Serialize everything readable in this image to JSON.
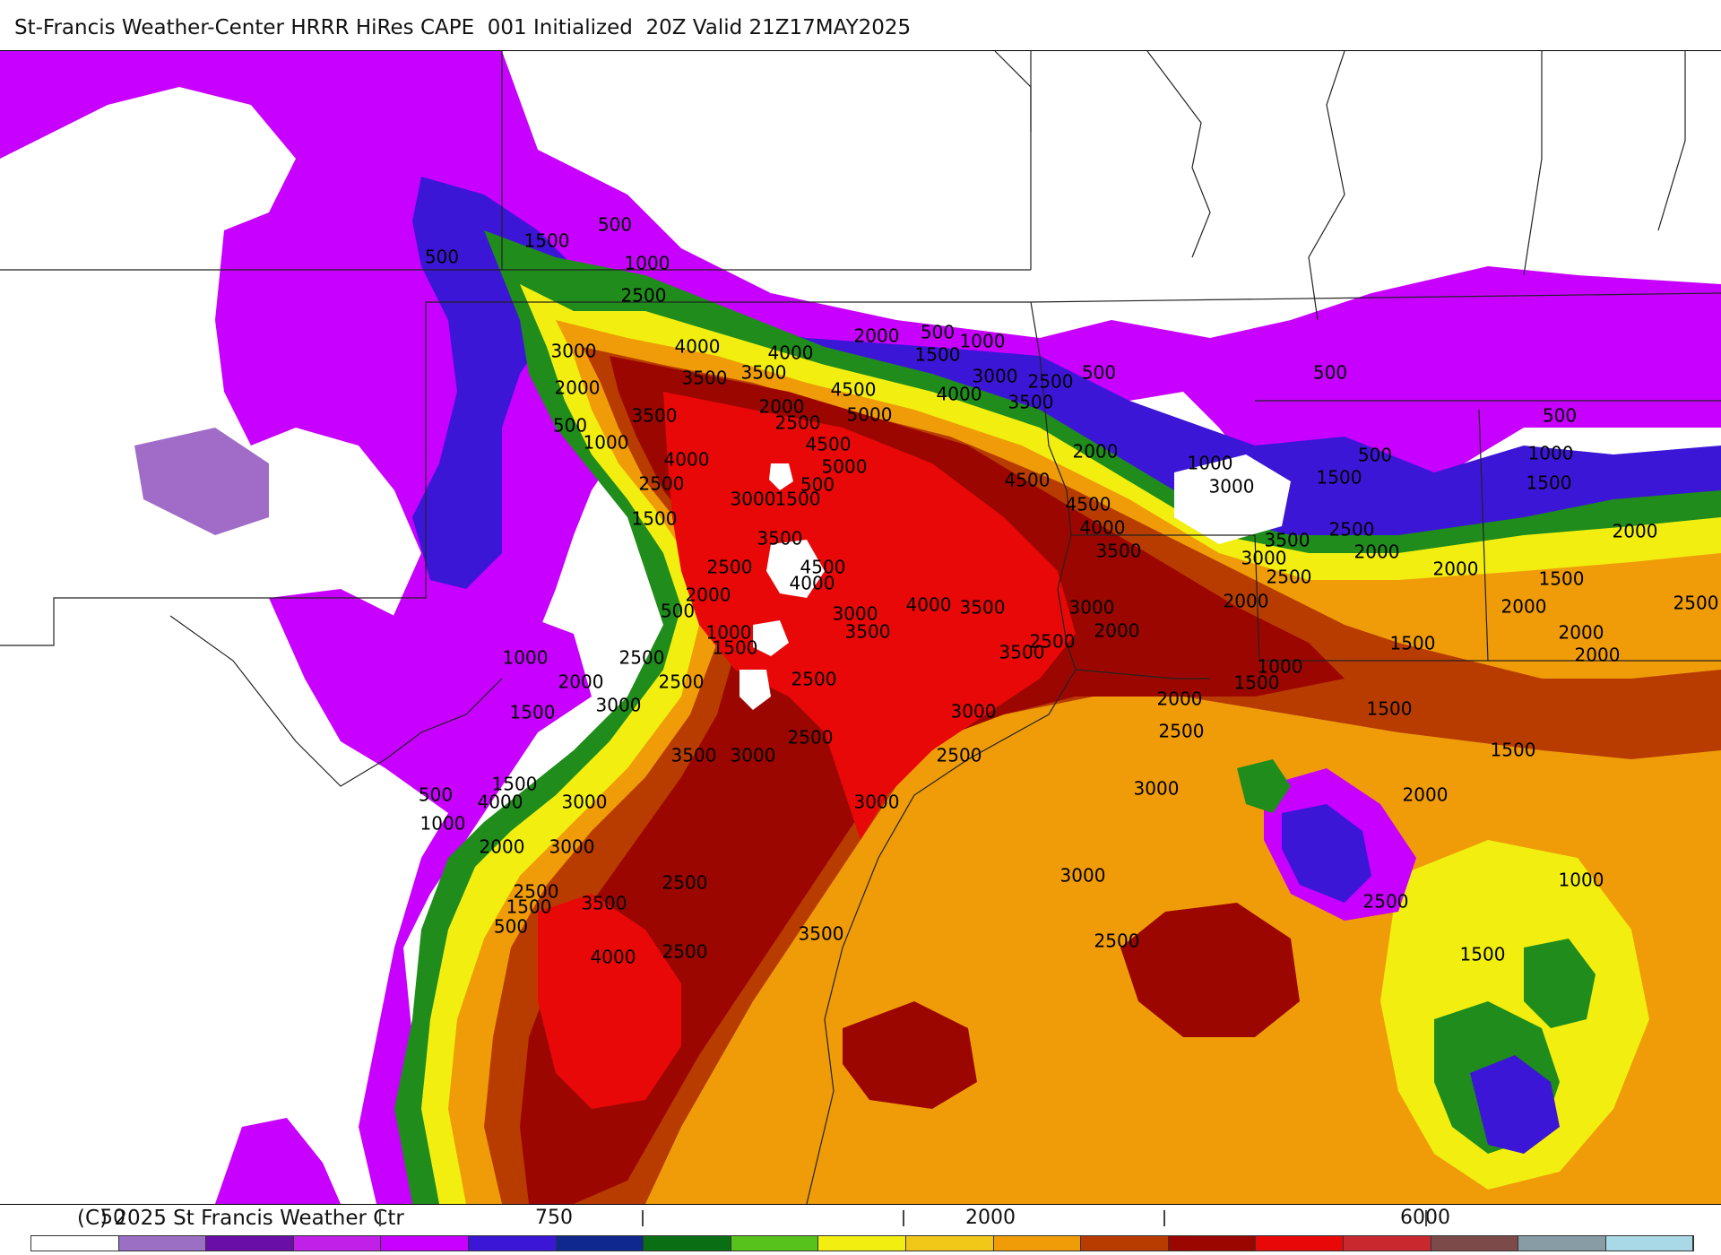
{
  "header": {
    "title": "St-Francis Weather-Center HRRR HiRes CAPE  001 Initialized  20Z Valid 21Z17MAY2025"
  },
  "footer": {
    "copyright": "(C) 2025 St Francis Weather Ctr"
  },
  "colorbar": {
    "labels": [
      "50",
      "750",
      "2000",
      "6000"
    ],
    "colors": [
      "#ffffff",
      "#9b6fc4",
      "#6a0ea8",
      "#c020e8",
      "#c800ff",
      "#3c16d6",
      "#0f2890",
      "#0a6e14",
      "#58c21c",
      "#f2ef10",
      "#f2c818",
      "#ef9c08",
      "#b83c00",
      "#9c0600",
      "#e80808",
      "#c9282f",
      "#7d4a4a",
      "#889ca6",
      "#a9d9e6"
    ]
  },
  "map": {
    "field_colors": {
      "purple_low": "#c800ff",
      "lavender": "#a06cc8",
      "blue": "#3c16d6",
      "green": "#1f8c1c",
      "yellow": "#f2ef10",
      "orange": "#ef9c08",
      "brown_red": "#b83c00",
      "dark_red": "#9c0600",
      "red": "#e80808"
    },
    "contour_labels": [
      "500",
      "1500",
      "500",
      "1000",
      "2500",
      "3000",
      "2000",
      "500",
      "1000",
      "4000",
      "4000",
      "3500",
      "3500",
      "4500",
      "2000",
      "2500",
      "5000",
      "4500",
      "5000",
      "4000",
      "2500",
      "500",
      "3000",
      "1500",
      "3500",
      "2500",
      "2000",
      "4500",
      "500",
      "1000",
      "1500",
      "4000",
      "3000",
      "2500",
      "2000",
      "500",
      "1000",
      "2000",
      "3000",
      "3500",
      "3000",
      "3500",
      "4000",
      "3000",
      "2000",
      "1500",
      "1000",
      "2500",
      "2000",
      "3000",
      "3500",
      "3000",
      "2000",
      "2000",
      "3000",
      "3500",
      "2500",
      "2500",
      "4000",
      "3000",
      "3000",
      "4000",
      "3500",
      "4500",
      "2000",
      "1000",
      "1500",
      "2500",
      "2000",
      "2000",
      "3000",
      "1500",
      "2000",
      "1500",
      "2000",
      "2000",
      "1500",
      "500",
      "1500",
      "1000",
      "500",
      "1000",
      "2000",
      "2500",
      "2000",
      "3000",
      "1500",
      "2000",
      "2500",
      "2000",
      "1500",
      "1000",
      "1500",
      "2500",
      "2500",
      "1500",
      "2500",
      "3000",
      "2500",
      "1000",
      "1500",
      "2000",
      "3000",
      "2000",
      "2500",
      "3000",
      "4000",
      "3500",
      "3500",
      "4000",
      "2500",
      "4000",
      "3000",
      "500"
    ]
  }
}
